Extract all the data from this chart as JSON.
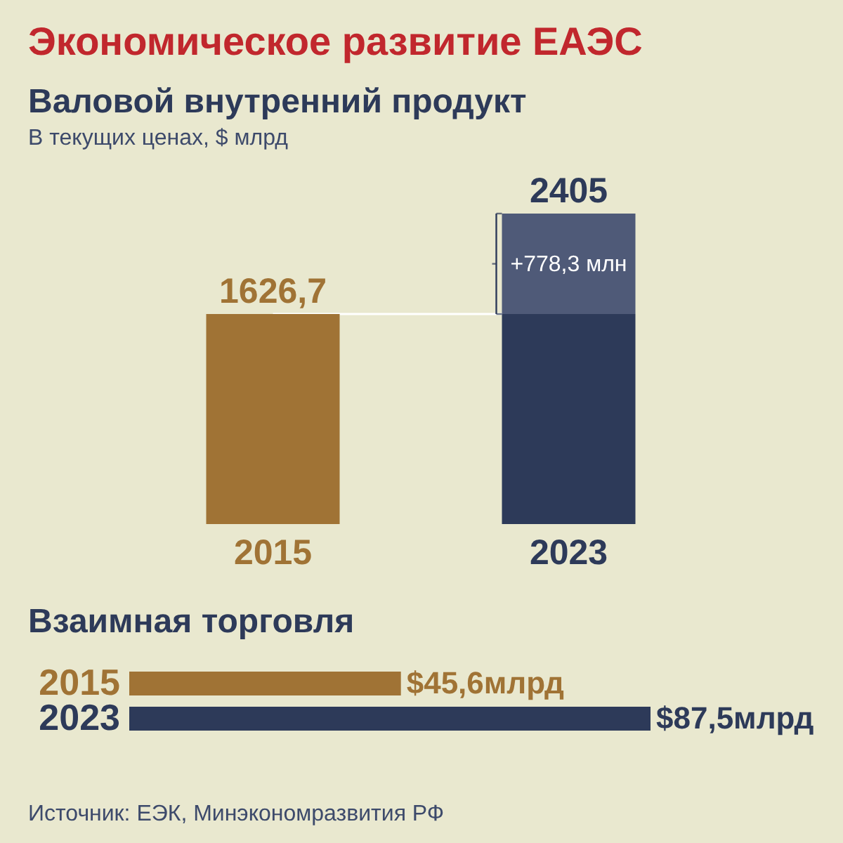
{
  "chart_data": [
    {
      "type": "other",
      "title": "Экономическое развитие ЕАЭС"
    },
    {
      "type": "bar",
      "title": "Валовой внутренний продукт",
      "subtitle": "В текущих ценах, $ млрд",
      "categories": [
        "2015",
        "2023"
      ],
      "stacked": true,
      "series": [
        {
          "colors": [
            "#a07335",
            "#2d3a59"
          ],
          "values": [
            1626.7,
            1626.7
          ],
          "value_labels": [
            "1626,7",
            null
          ]
        },
        {
          "color": "#4f5a78",
          "values": [
            null,
            778.3
          ],
          "value_labels": [
            null,
            "+778,3 млн"
          ]
        }
      ],
      "totals": [
        null,
        "2405"
      ],
      "ref_lines": [
        {
          "axis": "y",
          "value": 1626.7,
          "color": "#ffffff"
        }
      ]
    },
    {
      "type": "bar",
      "orientation": "horizontal",
      "title": "Взаимная торговля",
      "categories": [
        "2015",
        "2023"
      ],
      "values": [
        45.6,
        87.5
      ],
      "colors": [
        "#a07335",
        "#2d3a59"
      ],
      "value_labels": [
        "$45,6млрд",
        "$87,5млрд"
      ],
      "annotations": [
        "Источник: ЕЭК, Минэкономразвития РФ"
      ]
    }
  ]
}
